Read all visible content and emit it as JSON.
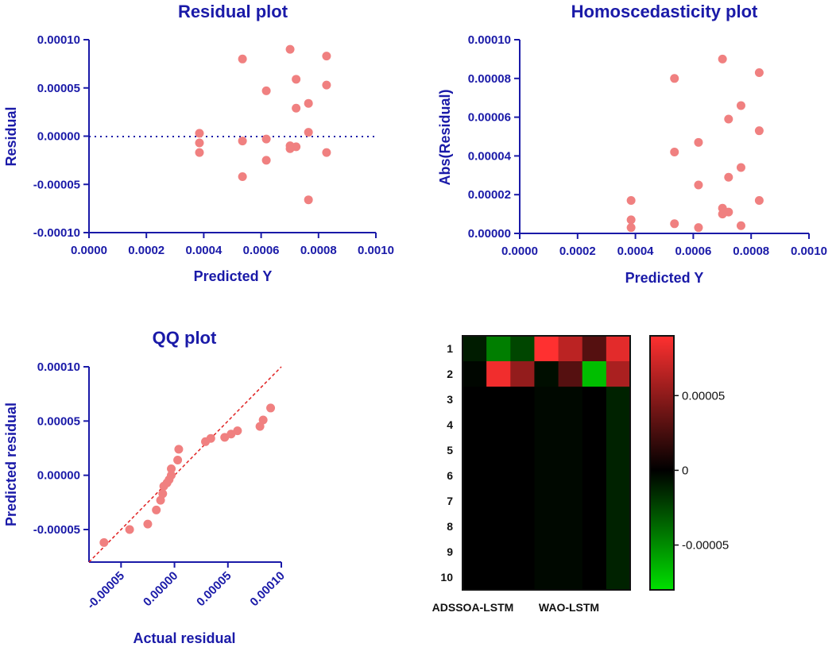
{
  "chart_data": [
    {
      "type": "scatter",
      "title": "Residual plot",
      "xlabel": "Predicted Y",
      "ylabel": "Residual",
      "xlim": [
        0,
        0.001
      ],
      "ylim": [
        -0.0001,
        0.0001
      ],
      "xticks": [
        "0.0000",
        "0.0002",
        "0.0004",
        "0.0006",
        "0.0008",
        "0.0010"
      ],
      "yticks": [
        "-0.00010",
        "-0.00005",
        "0.00000",
        "0.00005",
        "0.00010"
      ],
      "reference_line": {
        "type": "horizontal",
        "y": 0,
        "style": "dotted"
      },
      "points": [
        {
          "x": 0.000385,
          "y": 3e-06
        },
        {
          "x": 0.000385,
          "y": -7e-06
        },
        {
          "x": 0.000385,
          "y": -1.7e-05
        },
        {
          "x": 0.000535,
          "y": 8e-05
        },
        {
          "x": 0.000535,
          "y": -5e-06
        },
        {
          "x": 0.000535,
          "y": -4.2e-05
        },
        {
          "x": 0.000618,
          "y": 4.7e-05
        },
        {
          "x": 0.000618,
          "y": -3e-06
        },
        {
          "x": 0.000618,
          "y": -2.5e-05
        },
        {
          "x": 0.000701,
          "y": 9e-05
        },
        {
          "x": 0.000701,
          "y": -1e-05
        },
        {
          "x": 0.000701,
          "y": -1.3e-05
        },
        {
          "x": 0.000722,
          "y": 5.9e-05
        },
        {
          "x": 0.000722,
          "y": 2.9e-05
        },
        {
          "x": 0.000722,
          "y": -1.1e-05
        },
        {
          "x": 0.000765,
          "y": 3.4e-05
        },
        {
          "x": 0.000765,
          "y": 4e-06
        },
        {
          "x": 0.000765,
          "y": -6.6e-05
        },
        {
          "x": 0.000828,
          "y": 8.3e-05
        },
        {
          "x": 0.000828,
          "y": 5.3e-05
        },
        {
          "x": 0.000828,
          "y": -1.7e-05
        }
      ]
    },
    {
      "type": "scatter",
      "title": "Homoscedasticity plot",
      "xlabel": "Predicted Y",
      "ylabel": "Abs(Residual)",
      "xlim": [
        0,
        0.001
      ],
      "ylim": [
        0,
        0.0001
      ],
      "xticks": [
        "0.0000",
        "0.0002",
        "0.0004",
        "0.0006",
        "0.0008",
        "0.0010"
      ],
      "yticks": [
        "0.00000",
        "0.00002",
        "0.00004",
        "0.00006",
        "0.00008",
        "0.00010"
      ],
      "points": [
        {
          "x": 0.000385,
          "y": 3e-06
        },
        {
          "x": 0.000385,
          "y": 7e-06
        },
        {
          "x": 0.000385,
          "y": 1.7e-05
        },
        {
          "x": 0.000535,
          "y": 8e-05
        },
        {
          "x": 0.000535,
          "y": 5e-06
        },
        {
          "x": 0.000535,
          "y": 4.2e-05
        },
        {
          "x": 0.000618,
          "y": 4.7e-05
        },
        {
          "x": 0.000618,
          "y": 3e-06
        },
        {
          "x": 0.000618,
          "y": 2.5e-05
        },
        {
          "x": 0.000701,
          "y": 9e-05
        },
        {
          "x": 0.000701,
          "y": 1e-05
        },
        {
          "x": 0.000701,
          "y": 1.3e-05
        },
        {
          "x": 0.000722,
          "y": 5.9e-05
        },
        {
          "x": 0.000722,
          "y": 2.9e-05
        },
        {
          "x": 0.000722,
          "y": 1.1e-05
        },
        {
          "x": 0.000765,
          "y": 3.4e-05
        },
        {
          "x": 0.000765,
          "y": 4e-06
        },
        {
          "x": 0.000765,
          "y": 6.6e-05
        },
        {
          "x": 0.000828,
          "y": 8.3e-05
        },
        {
          "x": 0.000828,
          "y": 5.3e-05
        },
        {
          "x": 0.000828,
          "y": 1.7e-05
        }
      ]
    },
    {
      "type": "scatter",
      "title": "QQ plot",
      "xlabel": "Actual residual",
      "ylabel": "Predicted residual",
      "xlim": [
        -8e-05,
        0.0001
      ],
      "ylim": [
        -8e-05,
        0.0001
      ],
      "xticks": [
        "-0.00005",
        "0.00000",
        "0.00005",
        "0.00010"
      ],
      "yticks": [
        "-0.00005",
        "0.00000",
        "0.00005",
        "0.00010"
      ],
      "reference_line": {
        "type": "identity",
        "style": "dashed"
      },
      "points": [
        {
          "x": -6.6e-05,
          "y": -6.2e-05
        },
        {
          "x": -4.2e-05,
          "y": -5e-05
        },
        {
          "x": -2.5e-05,
          "y": -4.5e-05
        },
        {
          "x": -1.7e-05,
          "y": -3.2e-05
        },
        {
          "x": -1.3e-05,
          "y": -2.3e-05
        },
        {
          "x": -1.1e-05,
          "y": -1.7e-05
        },
        {
          "x": -1e-05,
          "y": -1e-05
        },
        {
          "x": -7e-06,
          "y": -7e-06
        },
        {
          "x": -5e-06,
          "y": -4e-06
        },
        {
          "x": -3e-06,
          "y": 0.0
        },
        {
          "x": -3e-06,
          "y": 6e-06
        },
        {
          "x": 3e-06,
          "y": 1.4e-05
        },
        {
          "x": 4e-06,
          "y": 2.4e-05
        },
        {
          "x": 2.9e-05,
          "y": 3.1e-05
        },
        {
          "x": 3.4e-05,
          "y": 3.4e-05
        },
        {
          "x": 4.7e-05,
          "y": 3.5e-05
        },
        {
          "x": 5.3e-05,
          "y": 3.8e-05
        },
        {
          "x": 5.9e-05,
          "y": 4.1e-05
        },
        {
          "x": 8e-05,
          "y": 4.5e-05
        },
        {
          "x": 8.3e-05,
          "y": 5.1e-05
        },
        {
          "x": 9e-05,
          "y": 6.2e-05
        }
      ]
    },
    {
      "type": "heatmap",
      "rows": [
        "1",
        "2",
        "3",
        "4",
        "5",
        "6",
        "7",
        "8",
        "9",
        "10"
      ],
      "columns": [
        "ADSSOA-LSTM",
        "",
        "",
        "WAO-LSTM",
        "",
        "",
        ""
      ],
      "column_labels_shown": [
        "ADSSOA-LSTM",
        "WAO-LSTM"
      ],
      "colorbar": {
        "min": -8e-05,
        "max": 9e-05,
        "ticks": [
          {
            "value": 5e-05,
            "label": "0.00005"
          },
          {
            "value": 0,
            "label": "0"
          },
          {
            "value": -5e-05,
            "label": "-0.00005"
          }
        ],
        "low_color": "#00e000",
        "mid_color": "#000000",
        "high_color": "#ff3030"
      },
      "values": [
        [
          -1e-05,
          -4.5e-05,
          -2.5e-05,
          9e-05,
          6.6e-05,
          3e-05,
          8e-05
        ],
        [
          -2e-06,
          8.5e-05,
          5.2e-05,
          -5e-06,
          3e-05,
          -6.8e-05,
          6e-05
        ],
        [
          0,
          0,
          0,
          -3e-06,
          -3e-06,
          0,
          -1.2e-05
        ],
        [
          0,
          0,
          0,
          -3e-06,
          -3e-06,
          0,
          -1.2e-05
        ],
        [
          0,
          0,
          0,
          -3e-06,
          -3e-06,
          0,
          -1.2e-05
        ],
        [
          0,
          0,
          0,
          -3e-06,
          -3e-06,
          0,
          -1.2e-05
        ],
        [
          0,
          0,
          0,
          -3e-06,
          -3e-06,
          0,
          -1.2e-05
        ],
        [
          0,
          0,
          0,
          -3e-06,
          -3e-06,
          0,
          -1.2e-05
        ],
        [
          0,
          0,
          0,
          -3e-06,
          -3e-06,
          0,
          -1.2e-05
        ],
        [
          0,
          0,
          0,
          -3e-06,
          -3e-06,
          0,
          -1.2e-05
        ]
      ]
    }
  ]
}
